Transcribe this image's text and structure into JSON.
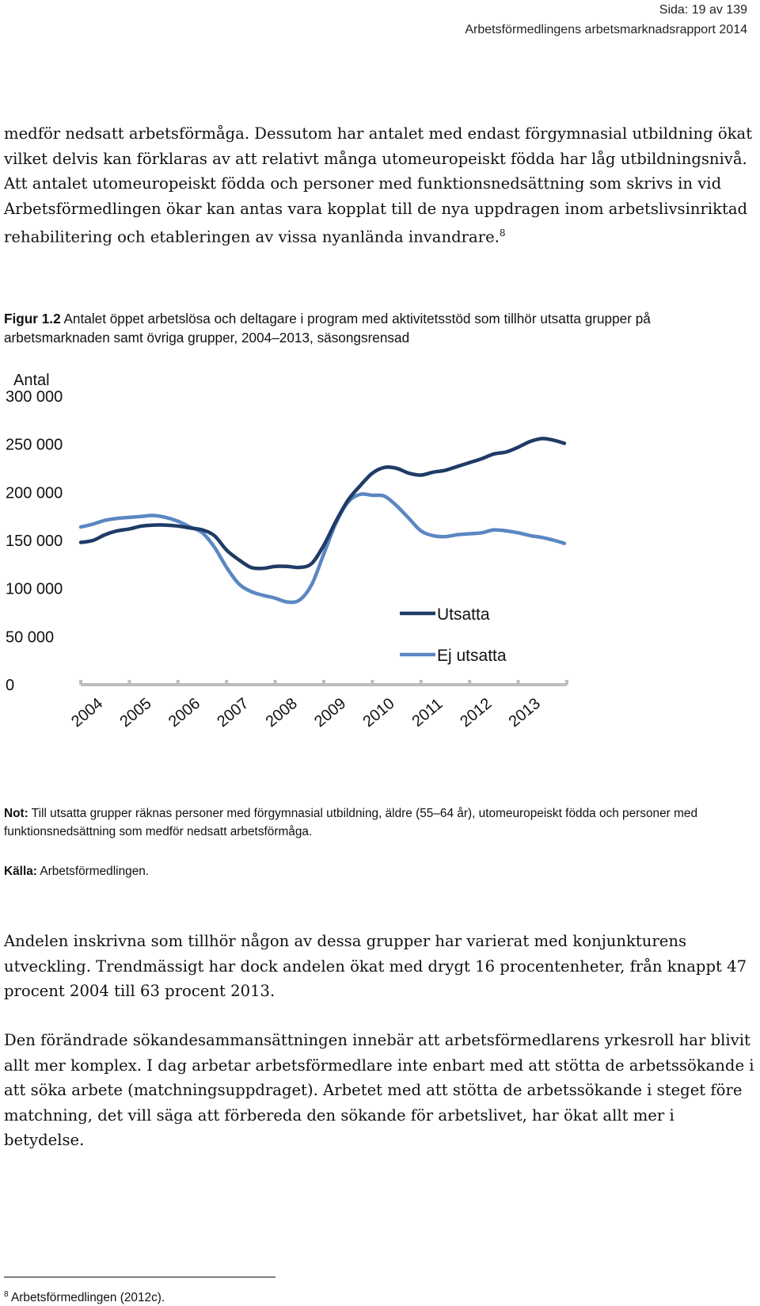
{
  "header": {
    "page": "Sida: 19 av 139",
    "report": "Arbetsförmedlingens arbetsmarknadsrapport 2014"
  },
  "paragraphs": {
    "p1": "medför nedsatt arbetsförmåga. Dessutom har antalet med endast förgymnasial utbildning ökat vilket delvis kan förklaras av att relativt många utomeuropeiskt födda har låg utbildningsnivå. Att antalet utomeuropeiskt födda och personer med funktionsnedsättning som skrivs in vid Arbetsförmedlingen ökar kan antas vara kopplat till de nya uppdragen inom arbetslivsinriktad rehabilitering och etableringen av vissa nyanlända invandrare.",
    "p1_ref": "8",
    "p2": "Andelen inskrivna som tillhör någon av dessa grupper har varierat med konjunkturens utveckling. Trendmässigt har dock andelen ökat med drygt 16 procentenheter, från knappt 47 procent 2004 till 63 procent 2013.",
    "p3": "Den förändrade sökandesammansättningen innebär att arbetsförmedlarens yrkesroll har blivit allt mer komplex. I dag arbetar arbetsförmedlare inte enbart med att stötta de arbetssökande i att söka arbete (matchningsuppdraget). Arbetet med att stötta de arbetssökande i steget före matchning, det vill säga att förbereda den sökande för arbetslivet, har ökat allt mer i betydelse."
  },
  "figure": {
    "label": "Figur 1.2",
    "caption": "Antalet öppet arbetslösa och deltagare i program med aktivitetsstöd som tillhör utsatta grupper på arbetsmarknaden samt övriga grupper, 2004–2013, säsongsrensad",
    "note_label": "Not:",
    "note": "Till utsatta grupper räknas personer med förgymnasial utbildning, äldre (55–64 år), utomeuropeiskt födda och personer med funktionsnedsättning som medför nedsatt arbetsförmåga.",
    "source_label": "Källa:",
    "source": "Arbetsförmedlingen."
  },
  "footnote": {
    "number": "8",
    "text": "Arbetsförmedlingen (2012c)."
  },
  "chart_data": {
    "type": "line",
    "ylabel": "Antal",
    "ylim": [
      0,
      300000
    ],
    "yticks": [
      0,
      50000,
      100000,
      150000,
      200000,
      250000,
      300000
    ],
    "ytick_labels": [
      "0",
      "50 000",
      "100 000",
      "150 000",
      "200 000",
      "250 000",
      "300 000"
    ],
    "xtick_labels": [
      "2004",
      "2005",
      "2006",
      "2007",
      "2008",
      "2009",
      "2010",
      "2011",
      "2012",
      "2013"
    ],
    "xlim": [
      2004,
      2014
    ],
    "grid": false,
    "legend_position": "right, middle",
    "series": [
      {
        "name": "Utsatta",
        "color": "#1f3b66",
        "x": [
          2004.0,
          2004.25,
          2004.5,
          2004.75,
          2005.0,
          2005.25,
          2005.5,
          2005.75,
          2006.0,
          2006.25,
          2006.5,
          2006.75,
          2007.0,
          2007.25,
          2007.5,
          2007.75,
          2008.0,
          2008.25,
          2008.5,
          2008.75,
          2009.0,
          2009.25,
          2009.5,
          2009.75,
          2010.0,
          2010.25,
          2010.5,
          2010.75,
          2011.0,
          2011.25,
          2011.5,
          2011.75,
          2012.0,
          2012.25,
          2012.5,
          2012.75,
          2013.0,
          2013.25,
          2013.5,
          2013.75,
          2013.95
        ],
        "values": [
          148000,
          150000,
          156000,
          160000,
          162000,
          165000,
          166000,
          166000,
          165000,
          163000,
          161000,
          155000,
          140000,
          130000,
          122000,
          121000,
          123000,
          123000,
          122000,
          126000,
          145000,
          170000,
          192000,
          207000,
          220000,
          226000,
          225000,
          220000,
          218000,
          221000,
          223000,
          227000,
          231000,
          235000,
          240000,
          242000,
          247000,
          253000,
          256000,
          254000,
          251000
        ]
      },
      {
        "name": "Ej utsatta",
        "color": "#5b87c2",
        "x": [
          2004.0,
          2004.25,
          2004.5,
          2004.75,
          2005.0,
          2005.25,
          2005.5,
          2005.75,
          2006.0,
          2006.25,
          2006.5,
          2006.75,
          2007.0,
          2007.25,
          2007.5,
          2007.75,
          2008.0,
          2008.25,
          2008.5,
          2008.75,
          2009.0,
          2009.25,
          2009.5,
          2009.75,
          2010.0,
          2010.25,
          2010.5,
          2010.75,
          2011.0,
          2011.25,
          2011.5,
          2011.75,
          2012.0,
          2012.25,
          2012.5,
          2012.75,
          2013.0,
          2013.25,
          2013.5,
          2013.75,
          2013.95
        ],
        "values": [
          164000,
          167000,
          171000,
          173000,
          174000,
          175000,
          176000,
          174000,
          170000,
          164000,
          158000,
          143000,
          122000,
          105000,
          97000,
          93000,
          90000,
          86000,
          88000,
          104000,
          136000,
          168000,
          190000,
          198000,
          197000,
          196000,
          186000,
          173000,
          160000,
          155000,
          154000,
          156000,
          157000,
          158000,
          161000,
          160000,
          158000,
          155000,
          153000,
          150000,
          147000
        ]
      }
    ]
  }
}
